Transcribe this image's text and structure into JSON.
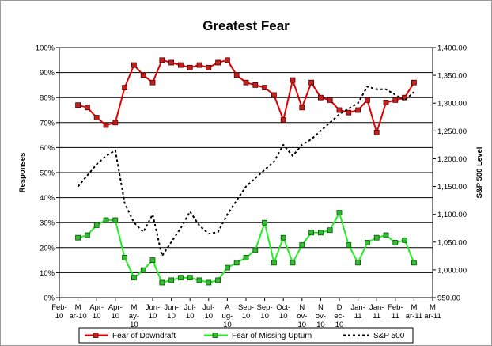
{
  "chart_data": {
    "type": "line",
    "title": "Greatest Fear",
    "ylabel": "Responses",
    "y2label": "S&P 500 Level",
    "ylim": [
      0,
      100
    ],
    "y2lim": [
      950,
      1400
    ],
    "y_ticks": [
      "0%",
      "10%",
      "20%",
      "30%",
      "40%",
      "50%",
      "60%",
      "70%",
      "80%",
      "90%",
      "100%"
    ],
    "y2_ticks": [
      "950.00",
      "1,000.00",
      "1,050.00",
      "1,100.00",
      "1,150.00",
      "1,200.00",
      "1,250.00",
      "1,300.00",
      "1,350.00",
      "1,400.00"
    ],
    "x_tick_labels": [
      [
        "Feb-",
        "10"
      ],
      [
        "M",
        "ar-10"
      ],
      [
        "Apr-",
        "10"
      ],
      [
        "Apr-",
        "10"
      ],
      [
        "M",
        "ay-",
        "10"
      ],
      [
        "Jun-",
        "10"
      ],
      [
        "Jun-",
        "10"
      ],
      [
        "Jul-",
        "10"
      ],
      [
        "Jul-",
        "10"
      ],
      [
        "A",
        "ug-",
        "10"
      ],
      [
        "Sep-",
        "10"
      ],
      [
        "Sep-",
        "10"
      ],
      [
        "Oct-",
        "10"
      ],
      [
        "N",
        "ov-",
        "10"
      ],
      [
        "N",
        "ov-",
        "10"
      ],
      [
        "D",
        "ec-",
        "10"
      ],
      [
        "Jan-",
        "11"
      ],
      [
        "Jan-",
        "11"
      ],
      [
        "Feb-",
        "11"
      ],
      [
        "M",
        "ar-11"
      ],
      [
        "M",
        "ar-11"
      ]
    ],
    "x_range": [
      0,
      20
    ],
    "series": [
      {
        "name": "Fear of Downdraft",
        "color": "#e00000",
        "marker_fill": "#c02020",
        "axis": "left",
        "x": [
          1,
          1.5,
          2,
          2.5,
          3,
          3.5,
          4,
          4.5,
          5,
          5.5,
          6,
          6.5,
          7,
          7.5,
          8,
          8.5,
          9,
          9.5,
          10,
          10.5,
          11,
          11.5,
          12,
          12.5,
          13,
          13.5,
          14,
          14.5,
          15,
          15.5,
          16,
          16.5,
          17,
          17.5,
          18,
          18.5,
          19
        ],
        "values": [
          77,
          76,
          72,
          69,
          70,
          84,
          93,
          89,
          86,
          95,
          94,
          93,
          92,
          93,
          92,
          94,
          95,
          89,
          86,
          85,
          84,
          81,
          71,
          87,
          76,
          86,
          80,
          79,
          75,
          74,
          75,
          79,
          66,
          78,
          79,
          80,
          86
        ]
      },
      {
        "name": "Fear of Missing Upturn",
        "color": "#22ee22",
        "marker_fill": "#33bb33",
        "axis": "left",
        "x": [
          1,
          1.5,
          2,
          2.5,
          3,
          3.5,
          4,
          4.5,
          5,
          5.5,
          6,
          6.5,
          7,
          7.5,
          8,
          8.5,
          9,
          9.5,
          10,
          10.5,
          11,
          11.5,
          12,
          12.5,
          13,
          13.5,
          14,
          14.5,
          15,
          15.5,
          16,
          16.5,
          17,
          17.5,
          18,
          18.5,
          19
        ],
        "values": [
          24,
          25,
          29,
          31,
          31,
          16,
          8,
          11,
          15,
          6,
          7,
          8,
          8,
          7,
          6,
          7,
          12,
          14,
          16,
          19,
          30,
          14,
          24,
          14,
          21,
          26,
          26,
          27,
          34,
          21,
          14,
          22,
          24,
          25,
          22,
          23,
          14
        ]
      },
      {
        "name": "S&P 500",
        "color": "#000000",
        "axis": "right",
        "style": "dashed",
        "x": [
          1,
          1.5,
          2,
          2.5,
          3,
          3.5,
          4,
          4.5,
          5,
          5.5,
          6,
          6.5,
          7,
          7.5,
          8,
          8.5,
          9,
          9.5,
          10,
          10.5,
          11,
          11.5,
          12,
          12.5,
          13,
          13.5,
          14,
          14.5,
          15,
          15.5,
          16,
          16.5,
          17,
          17.5,
          18,
          18.5,
          19
        ],
        "values": [
          1150,
          1170,
          1190,
          1205,
          1215,
          1120,
          1085,
          1068,
          1100,
          1025,
          1050,
          1075,
          1105,
          1080,
          1065,
          1068,
          1100,
          1125,
          1150,
          1165,
          1180,
          1195,
          1225,
          1205,
          1225,
          1235,
          1250,
          1265,
          1280,
          1290,
          1300,
          1330,
          1325,
          1325,
          1315,
          1305,
          1320
        ]
      }
    ],
    "legend_position": "bottom",
    "grid": true
  },
  "legend": {
    "items": [
      {
        "label": "Fear of Downdraft"
      },
      {
        "label": "Fear of Missing Upturn"
      },
      {
        "label": "S&P 500"
      }
    ]
  }
}
